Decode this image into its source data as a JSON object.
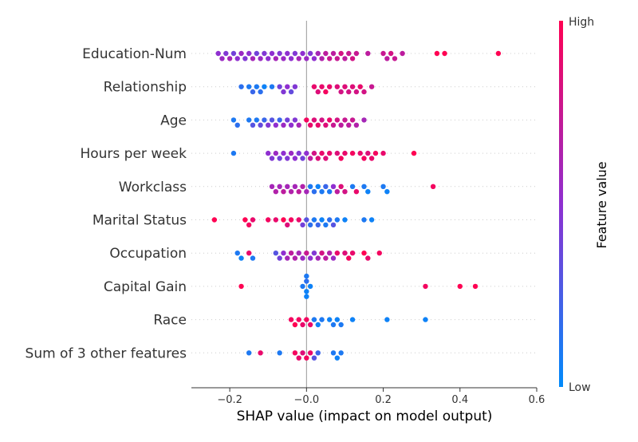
{
  "chart_data": {
    "type": "scatter",
    "subtype": "shap-beeswarm",
    "title": "",
    "xlabel": "SHAP value (impact on model output)",
    "ylabel": "",
    "xlim": [
      -0.3,
      0.6
    ],
    "xticks": [
      "−0.2",
      "−0.0",
      "0.2",
      "0.4",
      "0.6"
    ],
    "xtick_values": [
      -0.2,
      0.0,
      0.2,
      0.4,
      0.6
    ],
    "grid": false,
    "colorbar": {
      "label": "Feature value",
      "high_label": "High",
      "low_label": "Low",
      "low_color": "#008bfb",
      "mid_color": "#8f2fd0",
      "high_color": "#ff0052"
    },
    "features": [
      {
        "name": "Education-Num",
        "points": [
          [
            -0.23,
            0.5
          ],
          [
            -0.22,
            0.55
          ],
          [
            -0.21,
            0.45
          ],
          [
            -0.2,
            0.6
          ],
          [
            -0.19,
            0.4
          ],
          [
            -0.18,
            0.5
          ],
          [
            -0.17,
            0.55
          ],
          [
            -0.16,
            0.45
          ],
          [
            -0.15,
            0.5
          ],
          [
            -0.14,
            0.6
          ],
          [
            -0.13,
            0.4
          ],
          [
            -0.12,
            0.55
          ],
          [
            -0.11,
            0.45
          ],
          [
            -0.1,
            0.5
          ],
          [
            -0.09,
            0.5
          ],
          [
            -0.08,
            0.6
          ],
          [
            -0.07,
            0.45
          ],
          [
            -0.06,
            0.55
          ],
          [
            -0.05,
            0.5
          ],
          [
            -0.04,
            0.5
          ],
          [
            -0.03,
            0.45
          ],
          [
            -0.02,
            0.6
          ],
          [
            -0.01,
            0.5
          ],
          [
            0.0,
            0.55
          ],
          [
            0.01,
            0.45
          ],
          [
            0.02,
            0.5
          ],
          [
            0.03,
            0.6
          ],
          [
            0.04,
            0.65
          ],
          [
            0.05,
            0.7
          ],
          [
            0.06,
            0.75
          ],
          [
            0.07,
            0.7
          ],
          [
            0.08,
            0.75
          ],
          [
            0.09,
            0.8
          ],
          [
            0.1,
            0.7
          ],
          [
            0.11,
            0.75
          ],
          [
            0.12,
            0.8
          ],
          [
            0.13,
            0.75
          ],
          [
            0.16,
            0.7
          ],
          [
            0.2,
            0.75
          ],
          [
            0.21,
            0.7
          ],
          [
            0.22,
            0.8
          ],
          [
            0.23,
            0.75
          ],
          [
            0.25,
            0.7
          ],
          [
            0.34,
            1.0
          ],
          [
            0.36,
            1.0
          ],
          [
            0.5,
            1.0
          ]
        ]
      },
      {
        "name": "Relationship",
        "points": [
          [
            -0.17,
            0.15
          ],
          [
            -0.15,
            0.1
          ],
          [
            -0.14,
            0.2
          ],
          [
            -0.13,
            0.1
          ],
          [
            -0.12,
            0.15
          ],
          [
            -0.11,
            0.05
          ],
          [
            -0.09,
            0.1
          ],
          [
            -0.07,
            0.4
          ],
          [
            -0.06,
            0.45
          ],
          [
            -0.05,
            0.5
          ],
          [
            -0.04,
            0.35
          ],
          [
            -0.03,
            0.45
          ],
          [
            0.02,
            0.9
          ],
          [
            0.03,
            0.85
          ],
          [
            0.04,
            0.9
          ],
          [
            0.05,
            0.95
          ],
          [
            0.06,
            0.9
          ],
          [
            0.08,
            0.85
          ],
          [
            0.09,
            0.8
          ],
          [
            0.1,
            0.85
          ],
          [
            0.11,
            0.8
          ],
          [
            0.12,
            0.85
          ],
          [
            0.13,
            0.8
          ],
          [
            0.14,
            0.9
          ],
          [
            0.15,
            0.8
          ],
          [
            0.17,
            0.75
          ]
        ]
      },
      {
        "name": "Age",
        "points": [
          [
            -0.19,
            0.1
          ],
          [
            -0.18,
            0.15
          ],
          [
            -0.15,
            0.1
          ],
          [
            -0.14,
            0.3
          ],
          [
            -0.13,
            0.1
          ],
          [
            -0.12,
            0.35
          ],
          [
            -0.11,
            0.2
          ],
          [
            -0.1,
            0.45
          ],
          [
            -0.09,
            0.3
          ],
          [
            -0.08,
            0.5
          ],
          [
            -0.07,
            0.2
          ],
          [
            -0.06,
            0.55
          ],
          [
            -0.05,
            0.4
          ],
          [
            -0.04,
            0.5
          ],
          [
            -0.03,
            0.45
          ],
          [
            -0.02,
            0.6
          ],
          [
            0.0,
            0.95
          ],
          [
            0.01,
            0.9
          ],
          [
            0.02,
            0.85
          ],
          [
            0.03,
            0.9
          ],
          [
            0.04,
            0.8
          ],
          [
            0.05,
            0.85
          ],
          [
            0.06,
            0.9
          ],
          [
            0.07,
            0.75
          ],
          [
            0.08,
            0.8
          ],
          [
            0.09,
            0.7
          ],
          [
            0.1,
            0.75
          ],
          [
            0.11,
            0.7
          ],
          [
            0.12,
            0.75
          ],
          [
            0.13,
            0.65
          ],
          [
            0.15,
            0.6
          ]
        ]
      },
      {
        "name": "Hours per week",
        "points": [
          [
            -0.19,
            0.1
          ],
          [
            -0.1,
            0.5
          ],
          [
            -0.09,
            0.45
          ],
          [
            -0.08,
            0.55
          ],
          [
            -0.07,
            0.4
          ],
          [
            -0.06,
            0.5
          ],
          [
            -0.05,
            0.45
          ],
          [
            -0.04,
            0.55
          ],
          [
            -0.03,
            0.5
          ],
          [
            -0.02,
            0.45
          ],
          [
            -0.01,
            0.4
          ],
          [
            0.0,
            0.5
          ],
          [
            0.01,
            0.7
          ],
          [
            0.02,
            0.8
          ],
          [
            0.03,
            0.85
          ],
          [
            0.04,
            0.9
          ],
          [
            0.05,
            0.85
          ],
          [
            0.06,
            0.9
          ],
          [
            0.08,
            0.85
          ],
          [
            0.09,
            0.95
          ],
          [
            0.1,
            0.9
          ],
          [
            0.12,
            0.95
          ],
          [
            0.14,
            0.9
          ],
          [
            0.15,
            0.95
          ],
          [
            0.16,
            0.85
          ],
          [
            0.17,
            0.9
          ],
          [
            0.18,
            0.95
          ],
          [
            0.2,
            0.9
          ],
          [
            0.28,
            1.0
          ]
        ]
      },
      {
        "name": "Workclass",
        "points": [
          [
            -0.09,
            0.6
          ],
          [
            -0.08,
            0.65
          ],
          [
            -0.07,
            0.6
          ],
          [
            -0.06,
            0.7
          ],
          [
            -0.05,
            0.6
          ],
          [
            -0.04,
            0.65
          ],
          [
            -0.03,
            0.6
          ],
          [
            -0.02,
            0.7
          ],
          [
            -0.01,
            0.65
          ],
          [
            0.0,
            0.6
          ],
          [
            0.01,
            0.1
          ],
          [
            0.02,
            0.15
          ],
          [
            0.03,
            0.05
          ],
          [
            0.04,
            0.1
          ],
          [
            0.05,
            0.2
          ],
          [
            0.06,
            0.1
          ],
          [
            0.07,
            0.5
          ],
          [
            0.08,
            0.7
          ],
          [
            0.09,
            0.85
          ],
          [
            0.1,
            0.8
          ],
          [
            0.12,
            0.1
          ],
          [
            0.13,
            0.9
          ],
          [
            0.15,
            0.1
          ],
          [
            0.16,
            0.05
          ],
          [
            0.2,
            0.1
          ],
          [
            0.21,
            0.05
          ],
          [
            0.33,
            0.95
          ]
        ]
      },
      {
        "name": "Marital Status",
        "points": [
          [
            -0.24,
            1.0
          ],
          [
            -0.16,
            1.0
          ],
          [
            -0.15,
            0.95
          ],
          [
            -0.14,
            0.9
          ],
          [
            -0.1,
            0.95
          ],
          [
            -0.08,
            0.9
          ],
          [
            -0.06,
            1.0
          ],
          [
            -0.05,
            0.85
          ],
          [
            -0.04,
            0.95
          ],
          [
            -0.02,
            0.9
          ],
          [
            -0.01,
            0.4
          ],
          [
            0.0,
            0.3
          ],
          [
            0.01,
            0.15
          ],
          [
            0.02,
            0.1
          ],
          [
            0.03,
            0.2
          ],
          [
            0.04,
            0.05
          ],
          [
            0.05,
            0.1
          ],
          [
            0.06,
            0.15
          ],
          [
            0.07,
            0.3
          ],
          [
            0.08,
            0.1
          ],
          [
            0.1,
            0.05
          ],
          [
            0.15,
            0.1
          ],
          [
            0.17,
            0.05
          ]
        ]
      },
      {
        "name": "Occupation",
        "points": [
          [
            -0.18,
            0.1
          ],
          [
            -0.17,
            0.05
          ],
          [
            -0.15,
            0.9
          ],
          [
            -0.14,
            0.1
          ],
          [
            -0.08,
            0.3
          ],
          [
            -0.07,
            0.4
          ],
          [
            -0.06,
            0.5
          ],
          [
            -0.05,
            0.6
          ],
          [
            -0.04,
            0.7
          ],
          [
            -0.03,
            0.65
          ],
          [
            -0.02,
            0.6
          ],
          [
            -0.01,
            0.55
          ],
          [
            0.0,
            0.75
          ],
          [
            0.01,
            0.5
          ],
          [
            0.02,
            0.45
          ],
          [
            0.03,
            0.6
          ],
          [
            0.04,
            0.8
          ],
          [
            0.05,
            0.7
          ],
          [
            0.06,
            0.65
          ],
          [
            0.07,
            0.55
          ],
          [
            0.08,
            0.9
          ],
          [
            0.1,
            0.85
          ],
          [
            0.11,
            0.95
          ],
          [
            0.12,
            0.9
          ],
          [
            0.15,
            1.0
          ],
          [
            0.16,
            0.9
          ],
          [
            0.19,
            0.95
          ]
        ]
      },
      {
        "name": "Capital Gain",
        "points": [
          [
            -0.17,
            1.0
          ],
          [
            -0.01,
            0.1
          ],
          [
            0.0,
            0.05
          ],
          [
            0.0,
            0.15
          ],
          [
            0.0,
            0.05
          ],
          [
            0.0,
            0.1
          ],
          [
            0.01,
            0.05
          ],
          [
            0.31,
            0.95
          ],
          [
            0.4,
            1.0
          ],
          [
            0.44,
            1.0
          ]
        ]
      },
      {
        "name": "Race",
        "points": [
          [
            -0.04,
            0.95
          ],
          [
            -0.03,
            1.0
          ],
          [
            -0.02,
            0.95
          ],
          [
            -0.01,
            0.9
          ],
          [
            0.0,
            0.95
          ],
          [
            0.01,
            0.9
          ],
          [
            0.02,
            0.1
          ],
          [
            0.03,
            0.05
          ],
          [
            0.04,
            0.1
          ],
          [
            0.06,
            0.05
          ],
          [
            0.07,
            0.1
          ],
          [
            0.08,
            0.05
          ],
          [
            0.09,
            0.1
          ],
          [
            0.12,
            0.05
          ],
          [
            0.21,
            0.05
          ],
          [
            0.31,
            0.05
          ]
        ]
      },
      {
        "name": "Sum of 3 other features",
        "points": [
          [
            -0.15,
            0.1
          ],
          [
            -0.12,
            0.9
          ],
          [
            -0.07,
            0.1
          ],
          [
            -0.03,
            0.95
          ],
          [
            -0.02,
            0.9
          ],
          [
            -0.01,
            0.85
          ],
          [
            0.0,
            0.95
          ],
          [
            0.01,
            0.9
          ],
          [
            0.02,
            0.3
          ],
          [
            0.03,
            0.2
          ],
          [
            0.07,
            0.1
          ],
          [
            0.08,
            0.05
          ],
          [
            0.09,
            0.1
          ]
        ]
      }
    ]
  }
}
